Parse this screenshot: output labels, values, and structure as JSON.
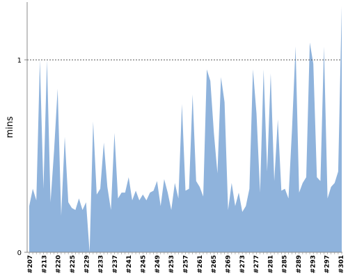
{
  "chart_data": {
    "type": "area",
    "title": "",
    "xlabel": "",
    "ylabel": "mins",
    "ylim": [
      0,
      1.3
    ],
    "ytick_labels": [
      {
        "value": 0,
        "label": "0"
      },
      {
        "value": 1,
        "label": "1"
      }
    ],
    "reference_line": {
      "value": 1,
      "style": "dotted"
    },
    "x_tick_labels": [
      "#207",
      "#213",
      "#220",
      "#225",
      "#229",
      "#233",
      "#237",
      "#241",
      "#245",
      "#249",
      "#253",
      "#257",
      "#261",
      "#265",
      "#269",
      "#273",
      "#277",
      "#281",
      "#285",
      "#289",
      "#293",
      "#297",
      "#301"
    ],
    "fill_color": "#8fb3dc",
    "series": [
      {
        "values": [
          0.24,
          0.33,
          0.27,
          1.0,
          0.33,
          1.0,
          0.26,
          0.53,
          0.85,
          0.19,
          0.6,
          0.26,
          0.23,
          0.22,
          0.28,
          0.22,
          0.26,
          0.0,
          0.68,
          0.3,
          0.33,
          0.57,
          0.34,
          0.22,
          0.62,
          0.28,
          0.31,
          0.31,
          0.39,
          0.27,
          0.32,
          0.27,
          0.3,
          0.27,
          0.31,
          0.32,
          0.37,
          0.24,
          0.38,
          0.31,
          0.22,
          0.36,
          0.28,
          0.77,
          0.32,
          0.33,
          0.82,
          0.37,
          0.34,
          0.29,
          0.95,
          0.89,
          0.62,
          0.41,
          0.91,
          0.78,
          0.22,
          0.36,
          0.24,
          0.31,
          0.21,
          0.24,
          0.33,
          0.95,
          0.72,
          0.31,
          0.95,
          0.42,
          0.93,
          0.37,
          0.69,
          0.32,
          0.33,
          0.28,
          0.64,
          1.07,
          0.31,
          0.36,
          0.39,
          1.09,
          0.98,
          0.39,
          0.37,
          1.07,
          0.28,
          0.34,
          0.36,
          0.42,
          1.28
        ]
      }
    ]
  }
}
